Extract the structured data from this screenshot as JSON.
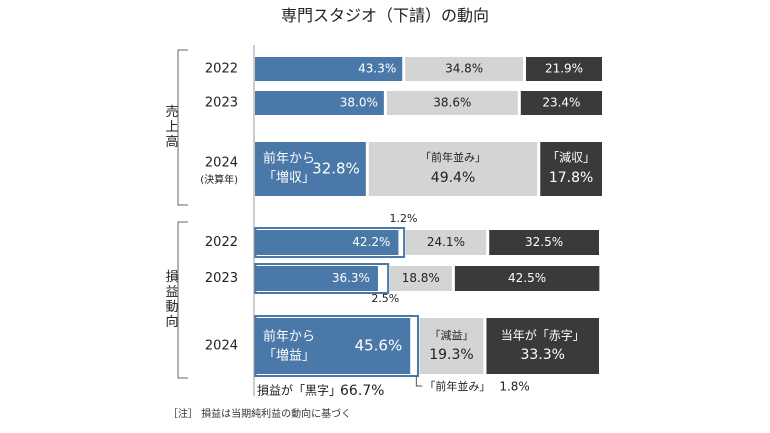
{
  "title": "専門スタジオ（下請）の動向",
  "note": "［注］ 損益は当期純利益の動向に基づく",
  "colors": {
    "increase": "#4a78a8",
    "flat": "#d4d4d4",
    "decrease": "#3a3a3a",
    "outline": "#4a78a8"
  },
  "chart_data": [
    {
      "type": "bar",
      "stacked": true,
      "orientation": "horizontal",
      "group_label": "売上高",
      "categories": [
        "2022",
        "2023",
        "2024"
      ],
      "category_sub_labels": [
        "",
        "",
        "(決算年)"
      ],
      "series": [
        {
          "key": "increase",
          "values": [
            43.3,
            38.0,
            32.8
          ],
          "labels": [
            "43.3%",
            "38.0%",
            "32.8%"
          ]
        },
        {
          "key": "flat",
          "values": [
            34.8,
            38.6,
            49.4
          ],
          "labels": [
            "34.8%",
            "38.6%",
            "49.4%"
          ]
        },
        {
          "key": "decrease",
          "values": [
            21.9,
            23.4,
            17.8
          ],
          "labels": [
            "21.9%",
            "23.4%",
            "17.8%"
          ]
        }
      ],
      "annotations_2024": {
        "increase": "前年から\n「増収」",
        "flat": "「前年並み」",
        "decrease": "「減収」"
      }
    },
    {
      "type": "bar",
      "stacked": true,
      "orientation": "horizontal",
      "group_label": "損益動向",
      "categories": [
        "2022",
        "2023",
        "2024"
      ],
      "series": [
        {
          "key": "increase",
          "values": [
            42.2,
            36.3,
            45.6
          ],
          "labels": [
            "42.2%",
            "36.3%",
            "45.6%"
          ]
        },
        {
          "key": "flat",
          "values": [
            1.2,
            2.5,
            1.8
          ],
          "labels": [
            "1.2%",
            "2.5%",
            "1.8%"
          ]
        },
        {
          "key": "decrease_loss",
          "values": [
            24.1,
            18.8,
            19.3
          ],
          "labels": [
            "24.1%",
            "18.8%",
            "19.3%"
          ]
        },
        {
          "key": "deficit",
          "values": [
            32.5,
            42.5,
            33.3
          ],
          "labels": [
            "32.5%",
            "42.5%",
            "33.3%"
          ]
        }
      ],
      "annotations_2024": {
        "increase": "前年から\n「増益」",
        "decrease_loss": "「減益」",
        "deficit": "当年が「赤字」",
        "flat": "「前年並み」",
        "surplus": "損益が「黒字」",
        "surplus_value": "66.7%"
      }
    }
  ]
}
